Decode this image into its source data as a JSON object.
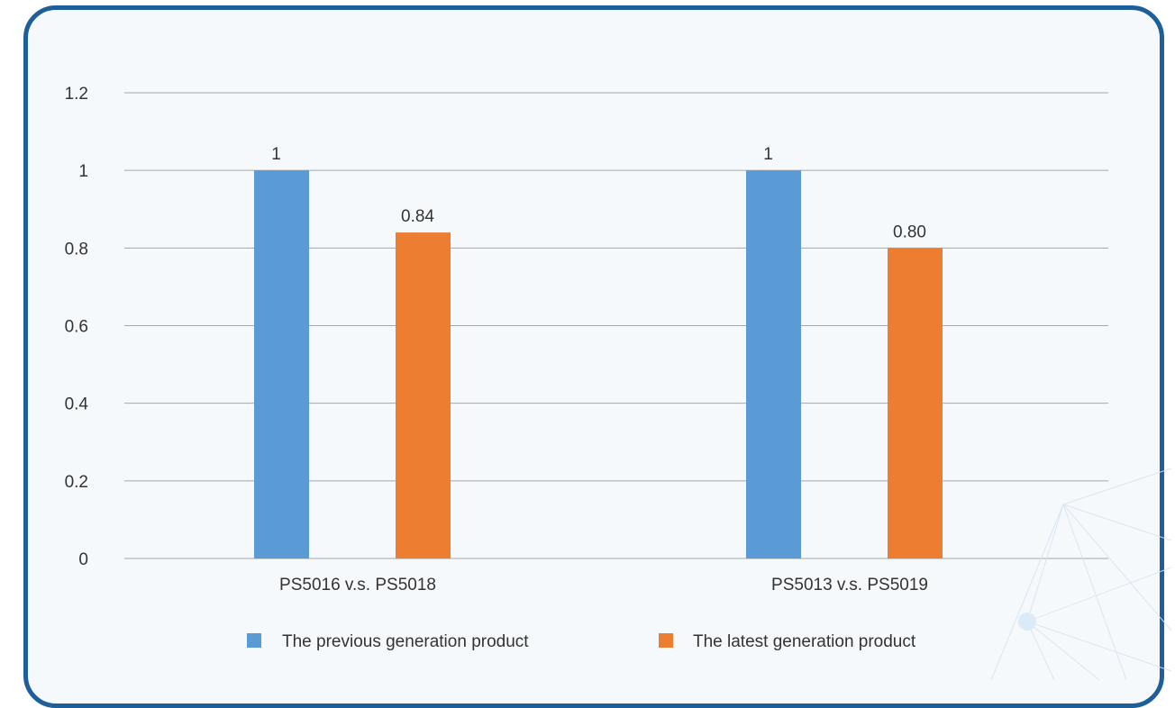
{
  "chart_data": {
    "type": "bar",
    "categories": [
      "PS5016 v.s. PS5018",
      "PS5013 v.s. PS5019"
    ],
    "series": [
      {
        "name": "The previous generation product",
        "values": [
          1,
          1
        ],
        "labels": [
          "1",
          "1"
        ],
        "color": "#5b9bd5"
      },
      {
        "name": "The latest generation product",
        "values": [
          0.84,
          0.8
        ],
        "labels": [
          "0.84",
          "0.80"
        ],
        "color": "#ed7d31"
      }
    ],
    "yticks": [
      "0",
      "0.2",
      "0.4",
      "0.6",
      "0.8",
      "1",
      "1.2"
    ],
    "ylim": [
      0,
      1.2
    ],
    "grid": true,
    "legend_position": "bottom"
  },
  "colors": {
    "frame_border": "#1f5f99",
    "frame_background": "#f6f9fb",
    "gridline": "#a6a6a6"
  }
}
